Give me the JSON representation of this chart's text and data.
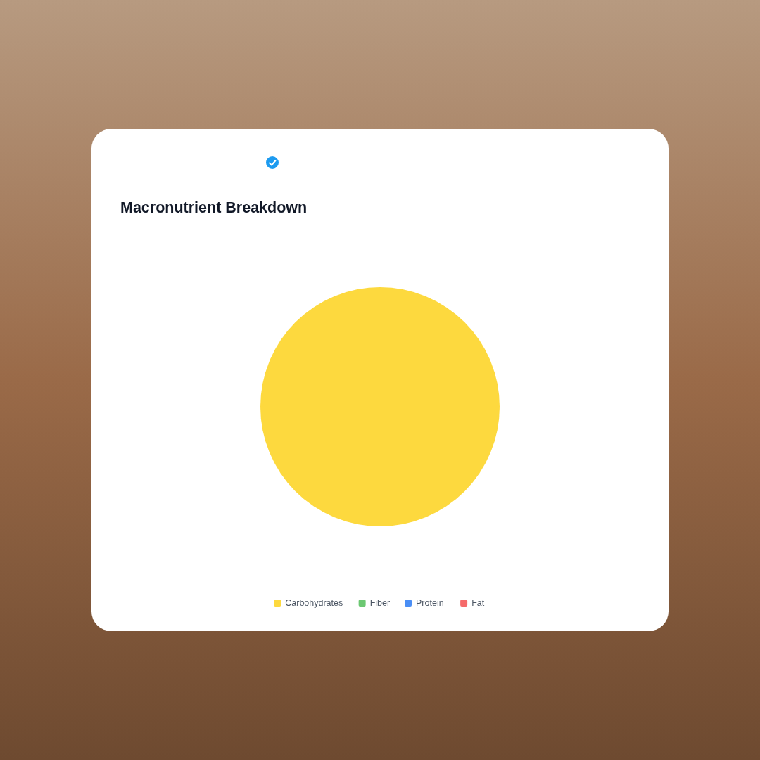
{
  "chart_data": {
    "type": "pie",
    "title": "Macronutrient Breakdown",
    "categories": [
      "Carbohydrates",
      "Fiber",
      "Protein",
      "Fat"
    ],
    "values": [
      100,
      0,
      0,
      0
    ],
    "colors": [
      "#fdd93e",
      "#6cc872",
      "#4a8ef5",
      "#f56a6a"
    ],
    "legend": "bottom"
  }
}
